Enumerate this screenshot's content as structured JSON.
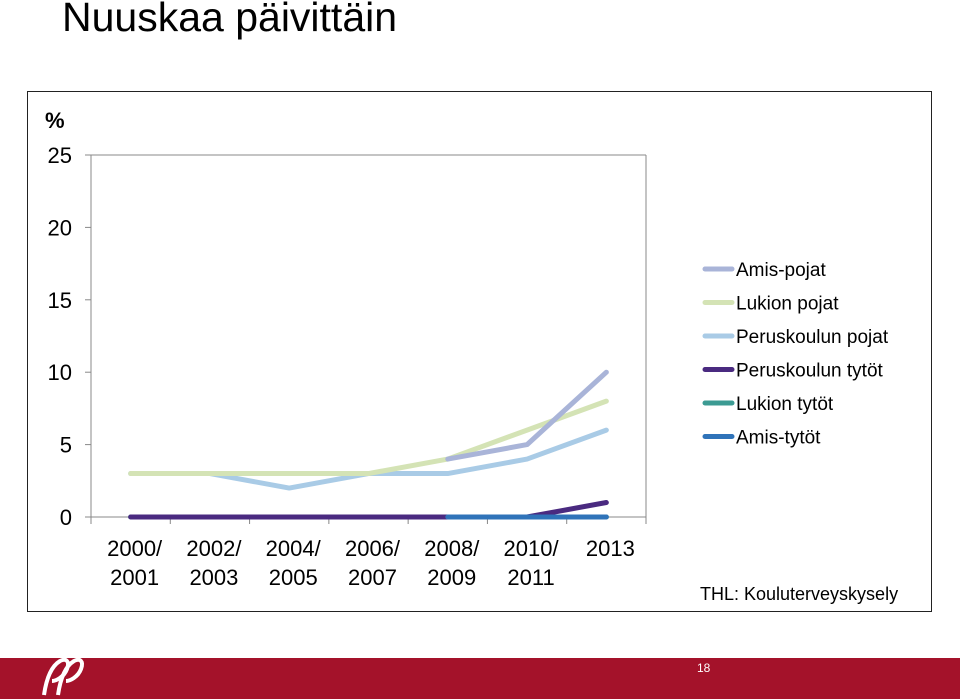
{
  "slide": {
    "title": "Nuuskaa päivittäin",
    "page_number": "18",
    "source": "THL: Kouluterveyskysely",
    "footer_color": "#a4122a"
  },
  "chart_data": {
    "type": "line",
    "title": "",
    "ylabel": "%",
    "xlabel": "",
    "ylim": [
      0,
      25
    ],
    "yticks": [
      "0",
      "5",
      "10",
      "15",
      "20",
      "25"
    ],
    "ytick_values": [
      0,
      5,
      10,
      15,
      20,
      25
    ],
    "categories": [
      [
        "2000/",
        "2001"
      ],
      [
        "2002/",
        "2003"
      ],
      [
        "2004/",
        "2005"
      ],
      [
        "2006/",
        "2007"
      ],
      [
        "2008/",
        "2009"
      ],
      [
        "2010/",
        "2011"
      ],
      [
        "2013",
        ""
      ]
    ],
    "grid": false,
    "legend_position": "right",
    "series": [
      {
        "name": "Amis-pojat",
        "color": "#a9b4d8",
        "values": [
          null,
          null,
          null,
          null,
          4,
          5,
          10
        ]
      },
      {
        "name": "Lukion pojat",
        "color": "#d4e3b5",
        "values": [
          3,
          3,
          3,
          3,
          4,
          6,
          8
        ]
      },
      {
        "name": "Peruskoulun pojat",
        "color": "#a9cbe6",
        "values": [
          3,
          3,
          2,
          3,
          3,
          4,
          6
        ]
      },
      {
        "name": "Peruskoulun tytöt",
        "color": "#4a2a80",
        "values": [
          0,
          0,
          0,
          0,
          0,
          0,
          1
        ]
      },
      {
        "name": "Lukion tytöt",
        "color": "#3c9b93",
        "values": [
          0,
          0,
          0,
          0,
          0,
          0,
          0
        ]
      },
      {
        "name": "Amis-tytöt",
        "color": "#2f73b9",
        "values": [
          null,
          null,
          null,
          null,
          0,
          0,
          0
        ]
      }
    ]
  }
}
